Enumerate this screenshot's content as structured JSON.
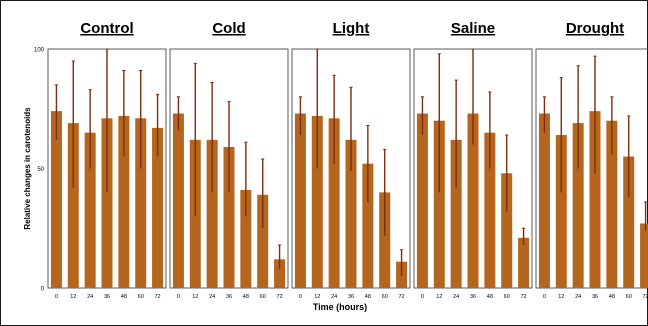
{
  "chart_data": {
    "type": "bar",
    "ylabel": "Relative changes in carotenoids",
    "xlabel": "Time (hours)",
    "ylim": [
      0,
      100
    ],
    "yticks": [
      0,
      50,
      100
    ],
    "categories": [
      "0",
      "12",
      "24",
      "36",
      "48",
      "60",
      "72"
    ],
    "bar_color": "#b5651d",
    "error_color": "#7a2e0c",
    "panels": [
      {
        "title": "Control",
        "values": [
          74,
          69,
          65,
          71,
          72,
          71,
          67
        ],
        "err_low": [
          62,
          42,
          50,
          40,
          55,
          50,
          55
        ],
        "err_high": [
          85,
          95,
          83,
          100,
          91,
          91,
          81
        ]
      },
      {
        "title": "Cold",
        "values": [
          73,
          62,
          62,
          59,
          41,
          39,
          12
        ],
        "err_low": [
          66,
          30,
          40,
          40,
          30,
          25,
          8
        ],
        "err_high": [
          80,
          94,
          86,
          78,
          61,
          54,
          18
        ]
      },
      {
        "title": "Light",
        "values": [
          73,
          72,
          71,
          62,
          52,
          40,
          11
        ],
        "err_low": [
          64,
          50,
          52,
          49,
          36,
          22,
          5
        ],
        "err_high": [
          80,
          100,
          89,
          84,
          68,
          58,
          16
        ]
      },
      {
        "title": "Saline",
        "values": [
          73,
          70,
          62,
          73,
          65,
          48,
          21
        ],
        "err_low": [
          64,
          40,
          42,
          60,
          50,
          32,
          18
        ],
        "err_high": [
          80,
          98,
          87,
          100,
          82,
          64,
          25
        ]
      },
      {
        "title": "Drought",
        "values": [
          73,
          64,
          69,
          74,
          70,
          55,
          27
        ],
        "err_low": [
          65,
          40,
          50,
          48,
          56,
          38,
          24
        ],
        "err_high": [
          80,
          88,
          93,
          97,
          80,
          72,
          36
        ]
      }
    ]
  }
}
